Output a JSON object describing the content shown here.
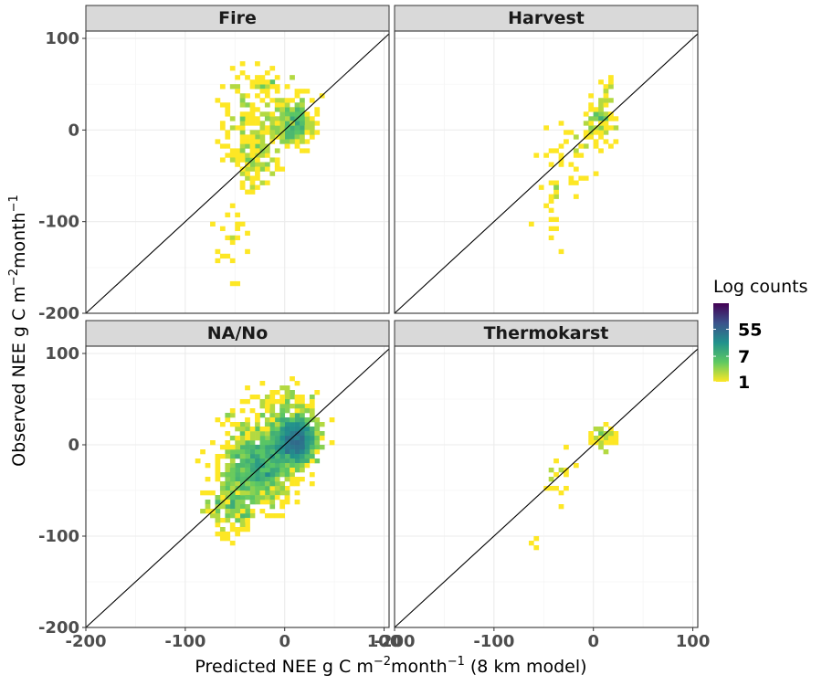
{
  "chart_data": {
    "type": "heatmap",
    "subtype": "faceted-2d-bin-counts",
    "xlabel": {
      "pre": "Predicted NEE g C m",
      "sup1": "−2",
      "mid": "month",
      "sup2": "−1",
      "post": " (8 km model)"
    },
    "ylabel": {
      "pre": "Observed NEE g C m",
      "sup1": "−2",
      "mid": "month",
      "sup2": "−1"
    },
    "xlim": [
      -200,
      105
    ],
    "ylim": [
      -200,
      108
    ],
    "x_ticks": [
      -200,
      -100,
      0,
      100
    ],
    "y_ticks": [
      -200,
      -100,
      0,
      100
    ],
    "x_tick_labels": [
      "-200",
      "-100",
      "0",
      "100"
    ],
    "y_tick_labels": [
      "-200",
      "-100",
      "0",
      "100"
    ],
    "bin_width": 5,
    "reference_line": "1:1 line (y = x)",
    "grid": true,
    "legend": {
      "title": "Log counts",
      "position": "right",
      "scale": "log",
      "colormap": "viridis (reversed)",
      "breaks": [
        1,
        7,
        55
      ],
      "break_labels": [
        "55",
        "7",
        "1"
      ],
      "max_count": 400
    },
    "colors": {
      "low": "#fde725",
      "mid": "#21918c",
      "high": "#440154"
    },
    "facets": [
      {
        "label": "Fire",
        "cluster": [
          {
            "x": 8,
            "y": 8,
            "n": 250,
            "sx": 10,
            "sy": 12
          },
          {
            "x": -30,
            "y": -20,
            "n": 160,
            "sx": 14,
            "sy": 22
          },
          {
            "x": -40,
            "y": 35,
            "n": 60,
            "sx": 14,
            "sy": 18
          },
          {
            "x": -55,
            "y": -130,
            "n": 22,
            "sx": 8,
            "sy": 25
          },
          {
            "x": -10,
            "y": 55,
            "n": 25,
            "sx": 10,
            "sy": 8
          }
        ]
      },
      {
        "label": "Harvest",
        "cluster": [
          {
            "x": 5,
            "y": 8,
            "n": 80,
            "sx": 8,
            "sy": 12
          },
          {
            "x": -25,
            "y": -35,
            "n": 35,
            "sx": 14,
            "sy": 20
          },
          {
            "x": -40,
            "y": -85,
            "n": 15,
            "sx": 8,
            "sy": 22
          },
          {
            "x": 12,
            "y": 45,
            "n": 12,
            "sx": 3,
            "sy": 12
          }
        ]
      },
      {
        "label": "NA/No",
        "cluster": [
          {
            "x": 10,
            "y": 5,
            "n": 1500,
            "sx": 10,
            "sy": 12
          },
          {
            "x": -25,
            "y": -25,
            "n": 900,
            "sx": 16,
            "sy": 20
          },
          {
            "x": -55,
            "y": -65,
            "n": 200,
            "sx": 12,
            "sy": 18
          },
          {
            "x": 0,
            "y": 40,
            "n": 120,
            "sx": 14,
            "sy": 14
          },
          {
            "x": -45,
            "y": 20,
            "n": 40,
            "sx": 12,
            "sy": 14
          }
        ]
      },
      {
        "label": "Thermokarst",
        "cluster": [
          {
            "x": 12,
            "y": 10,
            "n": 35,
            "sx": 8,
            "sy": 8
          },
          {
            "x": -30,
            "y": -35,
            "n": 18,
            "sx": 12,
            "sy": 12
          },
          {
            "x": -60,
            "y": -108,
            "n": 3,
            "sx": 2,
            "sy": 3
          }
        ]
      }
    ]
  }
}
